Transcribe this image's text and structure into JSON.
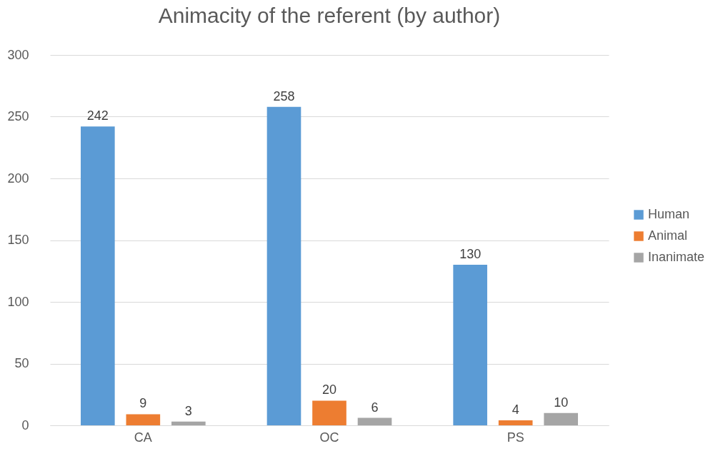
{
  "chart_data": {
    "type": "bar",
    "title": "Animacity of the referent (by author)",
    "categories": [
      "CA",
      "OC",
      "PS"
    ],
    "series": [
      {
        "name": "Human",
        "color": "#5b9bd5",
        "values": [
          242,
          258,
          130
        ]
      },
      {
        "name": "Animal",
        "color": "#ed7d31",
        "values": [
          9,
          20,
          4
        ]
      },
      {
        "name": "Inanimate",
        "color": "#a5a5a5",
        "values": [
          3,
          6,
          10
        ]
      }
    ],
    "ylim": [
      0,
      300
    ],
    "yticks": [
      0,
      50,
      100,
      150,
      200,
      250,
      300
    ],
    "grid": true,
    "legend": "right",
    "data_labels": true
  }
}
